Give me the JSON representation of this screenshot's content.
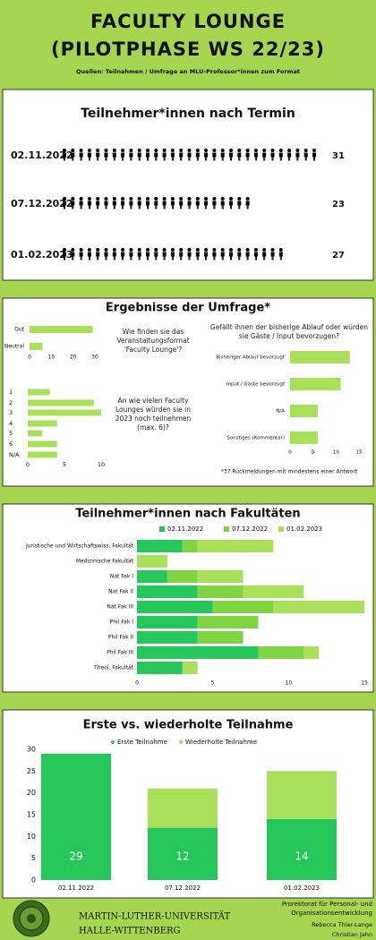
{
  "header": {
    "title_lines": [
      "FACULTY LOUNGE",
      "(PILOTPHASE WS 22/23)"
    ],
    "source": "Quellen: Teilnahmen / Umfrage an MLU-Professor*innen zum Format"
  },
  "survey_panel": {
    "title": "Ergebnisse der Umfrage*",
    "footnote": "*37 Rückmeldungen mit mindestens einer Antwort"
  },
  "chart_data": [
    {
      "type": "pictogram",
      "title": "Teilnehmer*innen nach Termin",
      "categories": [
        "02.11.2022",
        "07.12.2022",
        "01.02.2023"
      ],
      "values": [
        31,
        23,
        27
      ],
      "color": "#000000"
    },
    {
      "type": "bar",
      "title": "Wie finden sie das Veranstaltungsformat 'Faculty Lounge'?",
      "categories": [
        "Gut",
        "Neutral"
      ],
      "values": [
        29,
        6
      ],
      "color": "#a8e05a",
      "xlim": [
        0,
        30
      ],
      "xticks": [
        0,
        10,
        20,
        30
      ]
    },
    {
      "type": "bar",
      "title": "An wie vielen Faculty Lounges würden sie in 2023 noch teilnehmen (max. 6)?",
      "categories": [
        "1",
        "2",
        "3",
        "4",
        "5",
        "6",
        "N/A"
      ],
      "values": [
        3,
        9,
        10,
        4,
        2,
        4,
        4
      ],
      "color": "#a8e05a",
      "xlim": [
        0,
        10
      ],
      "xticks": [
        0,
        5,
        10
      ]
    },
    {
      "type": "bar",
      "title": "Gefällt ihnen der bisherige Ablauf oder würden sie Gäste / Input bevorzugen?",
      "categories": [
        "Bisheriger Ablauf bevorzugt",
        "Input / Gäste bevorzugt",
        "N/A",
        "Sonstiges (Kommentar)"
      ],
      "values": [
        13,
        11,
        6,
        6
      ],
      "color": "#a8e05a",
      "xlim": [
        0,
        15
      ],
      "xticks": [
        0,
        5,
        10,
        15
      ]
    },
    {
      "type": "stacked_bar",
      "title": "Teilnehmer*innen nach Fakultäten",
      "categories": [
        "Juristische und Wirtschaftswiss. Fakultät",
        "Medizinische Fakultät",
        "Nat Fak I",
        "Nat Fak II",
        "Nat Fak III",
        "Phil Fak I",
        "Phil Fak II",
        "Phil Fak III",
        "Theol. Fakultät"
      ],
      "series": [
        {
          "name": "02.11.2022",
          "color": "#25c65a",
          "values": [
            3,
            0,
            2,
            4,
            5,
            4,
            4,
            8,
            3
          ]
        },
        {
          "name": "07.12.2022",
          "color": "#7fd441",
          "values": [
            1,
            0,
            2,
            3,
            4,
            4,
            3,
            3,
            0
          ]
        },
        {
          "name": "01.02.2023",
          "color": "#a8e05a",
          "values": [
            5,
            2,
            3,
            4,
            6,
            0,
            0,
            1,
            1
          ]
        }
      ],
      "xlim": [
        0,
        15
      ],
      "xticks": [
        0,
        5,
        10,
        15
      ]
    },
    {
      "type": "stacked_column",
      "title": "Erste vs. wiederholte Teilnahme",
      "categories": [
        "02.11.2022",
        "07.12.2022",
        "01.02.2023"
      ],
      "series": [
        {
          "name": "Erste Teilnahme",
          "color": "#25c65a",
          "values": [
            29,
            12,
            14
          ]
        },
        {
          "name": "Wiederholte Teilnahme",
          "color": "#a8e05a",
          "values": [
            0,
            9,
            11
          ]
        }
      ],
      "ylim": [
        0,
        30
      ],
      "yticks": [
        0,
        5,
        10,
        15,
        20,
        25,
        30
      ]
    }
  ],
  "footer": {
    "university_lines": [
      "MARTIN-LUTHER-UNIVERSITÄT",
      "HALLE-WITTENBERG"
    ],
    "office_lines": [
      "Prorektorat für Personal- und",
      "Organisationsentwicklung"
    ],
    "people": [
      "Rebecca Thier-Lange",
      "Christian Jahn"
    ]
  }
}
